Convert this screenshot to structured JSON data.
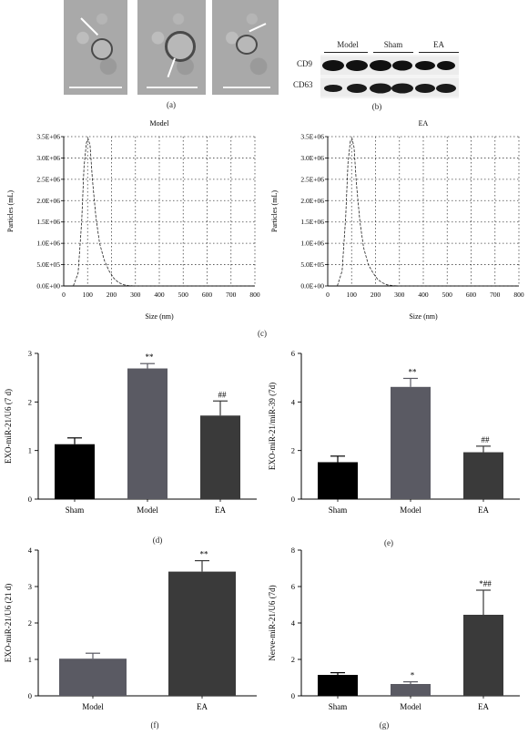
{
  "panel_labels": {
    "a": "(a)",
    "b": "(b)",
    "c": "(c)",
    "d": "(d)",
    "e": "(e)",
    "f": "(f)",
    "g": "(g)"
  },
  "western_blot": {
    "groups": [
      "Model",
      "Sham",
      "EA"
    ],
    "proteins": [
      "CD9",
      "CD63"
    ]
  },
  "colors": {
    "sham": "#000000",
    "model": "#5a5a63",
    "ea": "#3a3a3a"
  },
  "chart_data": [
    {
      "id": "c1",
      "type": "line",
      "title": "Model",
      "xlabel": "Size (nm)",
      "ylabel": "Particles (mL)",
      "xlim": [
        0,
        800
      ],
      "ylim": [
        0,
        3500000
      ],
      "xticks": [
        "0",
        "100",
        "200",
        "300",
        "400",
        "500",
        "600",
        "700",
        "800"
      ],
      "yticks": [
        "0.0E+00",
        "5.0E+05",
        "1.0E+06",
        "1.5E+06",
        "2.0E+06",
        "2.5E+06",
        "3.0E+06",
        "3.5E+06"
      ],
      "grid": true,
      "x": [
        40,
        60,
        75,
        85,
        95,
        102,
        110,
        120,
        135,
        150,
        170,
        190,
        210,
        230,
        250,
        270,
        300,
        400,
        800
      ],
      "y": [
        0,
        300000,
        1500000,
        2800000,
        3350000,
        3450000,
        3300000,
        2500000,
        1600000,
        1000000,
        600000,
        350000,
        180000,
        80000,
        30000,
        10000,
        0,
        0,
        0
      ]
    },
    {
      "id": "c2",
      "type": "line",
      "title": "EA",
      "xlabel": "Size (nm)",
      "ylabel": "Particles (mL)",
      "xlim": [
        0,
        800
      ],
      "ylim": [
        0,
        3500000
      ],
      "xticks": [
        "0",
        "100",
        "200",
        "300",
        "400",
        "500",
        "600",
        "700",
        "800"
      ],
      "yticks": [
        "0.0E+00",
        "5.0E+05",
        "1.0E+06",
        "1.5E+06",
        "2.0E+06",
        "2.5E+06",
        "3.0E+06",
        "3.5E+06"
      ],
      "grid": true,
      "x": [
        40,
        60,
        75,
        85,
        95,
        102,
        110,
        120,
        135,
        150,
        170,
        190,
        210,
        230,
        250,
        270,
        300,
        400,
        800
      ],
      "y": [
        0,
        350000,
        1600000,
        2900000,
        3400000,
        3450000,
        3250000,
        2400000,
        1500000,
        900000,
        500000,
        300000,
        150000,
        70000,
        25000,
        10000,
        0,
        0,
        0
      ]
    },
    {
      "id": "d",
      "type": "bar",
      "ylabel": "EXO-miR-21/U6 (7 d)",
      "categories": [
        "Sham",
        "Model",
        "EA"
      ],
      "values": [
        1.13,
        2.69,
        1.72
      ],
      "errors": [
        0.13,
        0.1,
        0.3
      ],
      "annotations": [
        "",
        "**",
        "##"
      ],
      "ylim": [
        0,
        3
      ],
      "yticks": [
        "0",
        "1",
        "2",
        "3"
      ]
    },
    {
      "id": "e",
      "type": "bar",
      "ylabel": "EXO-miR-21/miR-39 (7d)",
      "categories": [
        "Sham",
        "Model",
        "EA"
      ],
      "values": [
        1.52,
        4.62,
        1.93
      ],
      "errors": [
        0.25,
        0.35,
        0.25
      ],
      "annotations": [
        "",
        "**",
        "##"
      ],
      "ylim": [
        0,
        6
      ],
      "yticks": [
        "0",
        "2",
        "4",
        "6"
      ]
    },
    {
      "id": "f",
      "type": "bar",
      "ylabel": "EXO-miR-21/U6 (21 d)",
      "categories": [
        "Model",
        "EA"
      ],
      "values": [
        1.02,
        3.41
      ],
      "errors": [
        0.15,
        0.3
      ],
      "annotations": [
        "",
        "**"
      ],
      "ylim": [
        0,
        4
      ],
      "yticks": [
        "0",
        "1",
        "2",
        "3",
        "4"
      ]
    },
    {
      "id": "g",
      "type": "bar",
      "ylabel": "Nerve-miR-21/U6 (7d)",
      "categories": [
        "Sham",
        "Model",
        "EA"
      ],
      "values": [
        1.15,
        0.65,
        4.45
      ],
      "errors": [
        0.12,
        0.12,
        1.35
      ],
      "annotations": [
        "",
        "*",
        "*##"
      ],
      "ylim": [
        0,
        8
      ],
      "yticks": [
        "0",
        "2",
        "4",
        "6",
        "8"
      ]
    }
  ]
}
